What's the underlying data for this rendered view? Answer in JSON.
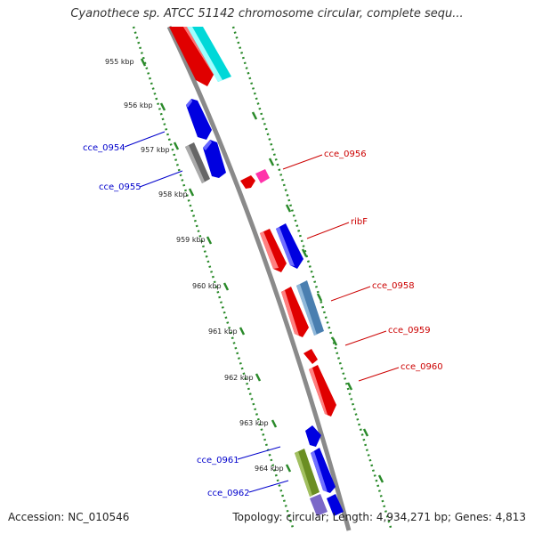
{
  "title": "Cyanothece sp. ATCC 51142 chromosome circular, complete sequ...",
  "accession_text": "Accession: NC_010546",
  "summary_text": "Topology: circular; Length: 4,934,271 bp; Genes: 4,813",
  "kbp_ticks": [
    "955 kbp",
    "956 kbp",
    "957 kbp",
    "958 kbp",
    "959 kbp",
    "960 kbp",
    "961 kbp",
    "962 kbp",
    "963 kbp",
    "964 kbp"
  ],
  "left_labels": [
    "cce_0954",
    "cce_0955",
    "cce_0961",
    "cce_0962"
  ],
  "right_labels": [
    "cce_0956",
    "ribF",
    "cce_0958",
    "cce_0959",
    "cce_0960"
  ],
  "colors": {
    "left_label": "#0000cc",
    "right_label": "#cc0000",
    "ruler": "#2a8a2a",
    "backbone": "#8a8a8a"
  }
}
